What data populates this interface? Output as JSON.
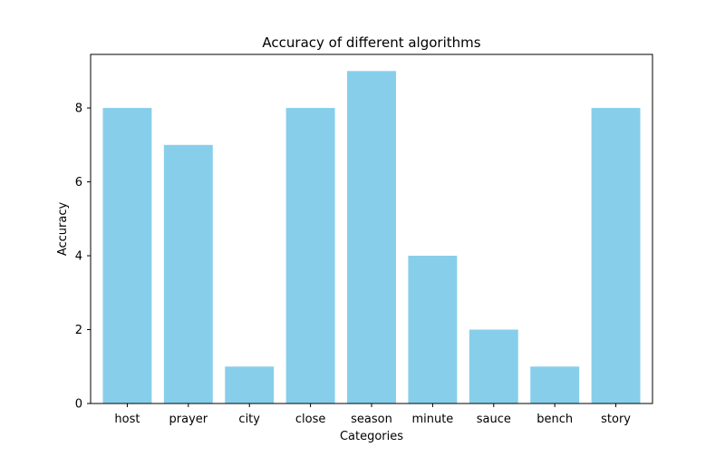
{
  "chart_data": {
    "type": "bar",
    "title": "Accuracy of different algorithms",
    "xlabel": "Categories",
    "ylabel": "Accuracy",
    "categories": [
      "host",
      "prayer",
      "city",
      "close",
      "season",
      "minute",
      "sauce",
      "bench",
      "story"
    ],
    "values": [
      8,
      7,
      1,
      8,
      9,
      4,
      2,
      1,
      8
    ],
    "ylim": [
      0,
      9.45
    ],
    "yticks": [
      0,
      2,
      4,
      6,
      8
    ],
    "bar_color": "#87ceeb",
    "grid": false,
    "legend": "none"
  }
}
